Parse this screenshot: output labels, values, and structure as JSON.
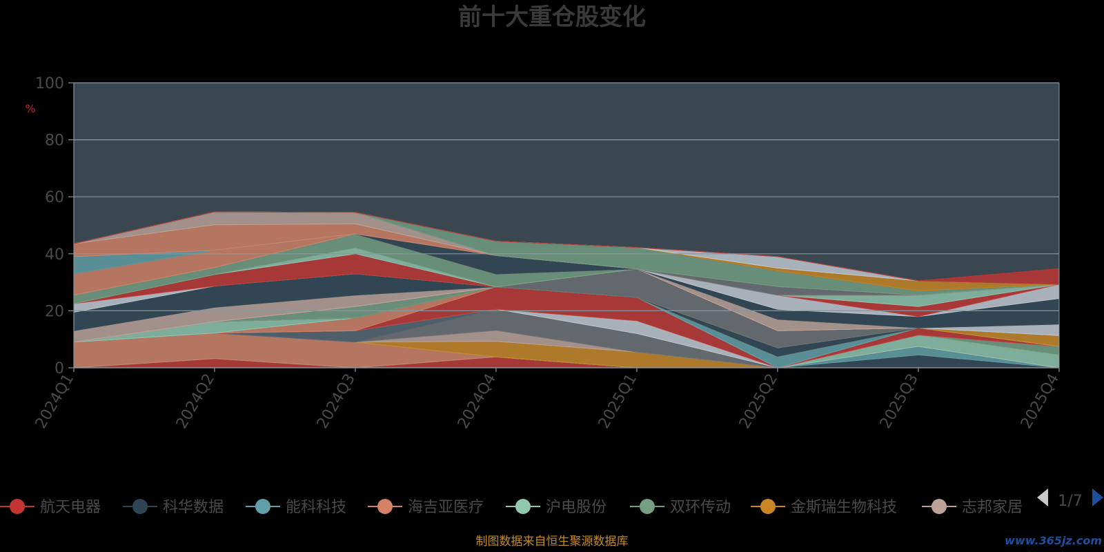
{
  "chart_data": {
    "type": "area",
    "title": "前十大重仓股变化",
    "ylabel": "%",
    "ylim": [
      0,
      100
    ],
    "yticks": [
      0,
      20,
      40,
      60,
      80,
      100
    ],
    "grid": true,
    "categories": [
      "2024Q1",
      "2024Q2",
      "2024Q3",
      "2024Q4",
      "2025Q1",
      "2025Q2",
      "2025Q3",
      "2025Q4"
    ],
    "series": [
      {
        "name": "航天电器",
        "color": "#c23531",
        "values": [
          0,
          3.2,
          0,
          3.8,
          0,
          0,
          0,
          0
        ]
      },
      {
        "name": "科华数据",
        "color": "#2f4554",
        "values": [
          0,
          0,
          0,
          0,
          0,
          0,
          4.5,
          0
        ]
      },
      {
        "name": "能科科技",
        "color": "#61a0a8",
        "values": [
          0,
          0,
          0,
          0,
          0,
          0,
          3.0,
          0
        ]
      },
      {
        "name": "海吉亚医疗",
        "color": "#d48265",
        "values": [
          9.0,
          9.0,
          9.0,
          0,
          0,
          0,
          0,
          0
        ]
      },
      {
        "name": "沪电股份",
        "color": "#91c7ae",
        "values": [
          0,
          0,
          0,
          0,
          0,
          0,
          4.0,
          4.5
        ]
      },
      {
        "name": "双环传动",
        "color": "#749f83",
        "values": [
          0,
          0,
          0,
          0,
          0,
          0,
          0,
          3.0
        ]
      },
      {
        "name": "金斯瑞生物科技",
        "color": "#ca8622",
        "values": [
          0,
          0,
          0,
          5.5,
          5.5,
          0,
          0,
          0
        ]
      },
      {
        "name": "志邦家居",
        "color": "#bda29a",
        "values": [
          0,
          0,
          0,
          3.8,
          0,
          0,
          0,
          0
        ]
      },
      {
        "name": "",
        "color": "#6e7074",
        "values": [
          0,
          0,
          0,
          7.5,
          6.5,
          0,
          0,
          0
        ]
      },
      {
        "name": "",
        "color": "#546570",
        "values": [
          0,
          0,
          4.0,
          0,
          0,
          0,
          0,
          0
        ]
      },
      {
        "name": "",
        "color": "#c4ccd3",
        "values": [
          0,
          0,
          0,
          0,
          4.5,
          0,
          0,
          0
        ]
      },
      {
        "name": "",
        "color": "#c23531",
        "values": [
          0,
          0,
          0,
          7.8,
          8.2,
          0,
          2.5,
          0
        ]
      },
      {
        "name": "",
        "color": "#d48265",
        "values": [
          0,
          0,
          4.5,
          0,
          0,
          0,
          0,
          0
        ]
      },
      {
        "name": "",
        "color": "#61a0a8",
        "values": [
          0,
          0,
          0,
          0,
          0,
          4.0,
          0,
          0
        ]
      },
      {
        "name": "",
        "color": "#91c7ae",
        "values": [
          0,
          4.0,
          0,
          0,
          0,
          0,
          0,
          0
        ]
      },
      {
        "name": "",
        "color": "#ca8622",
        "values": [
          0,
          0,
          0,
          0,
          0,
          0,
          0,
          3.8
        ]
      },
      {
        "name": "",
        "color": "#2f4554",
        "values": [
          0,
          0,
          0,
          0,
          0,
          3.0,
          0,
          0
        ]
      },
      {
        "name": "",
        "color": "#749f83",
        "values": [
          0,
          0,
          4.0,
          0,
          0,
          0,
          0,
          0
        ]
      },
      {
        "name": "",
        "color": "#6e7074",
        "values": [
          0,
          0,
          0,
          0,
          10.0,
          6.0,
          0,
          0
        ]
      },
      {
        "name": "",
        "color": "#c4ccd3",
        "values": [
          0,
          0,
          0,
          0,
          0,
          0,
          0,
          4.0
        ]
      },
      {
        "name": "",
        "color": "#d48265",
        "values": [
          0,
          0,
          0,
          0,
          0,
          0,
          0,
          0
        ]
      },
      {
        "name": "",
        "color": "#bda29a",
        "values": [
          4.0,
          5.0,
          4.0,
          0,
          0,
          4.0,
          0,
          0
        ]
      },
      {
        "name": "",
        "color": "#2f4554",
        "values": [
          6.5,
          7.5,
          7.5,
          0,
          0,
          3.5,
          4.0,
          9.0
        ]
      },
      {
        "name": "",
        "color": "#c4ccd3",
        "values": [
          3.0,
          0,
          0,
          0,
          0,
          5.0,
          0,
          5.0
        ]
      },
      {
        "name": "",
        "color": "#c23531",
        "values": [
          0,
          4.0,
          7.0,
          0,
          0,
          0,
          3.5,
          0
        ]
      },
      {
        "name": "",
        "color": "#91c7ae",
        "values": [
          0,
          0,
          2.0,
          0,
          0,
          0,
          4.0,
          0
        ]
      },
      {
        "name": "",
        "color": "#749f83",
        "values": [
          3.0,
          2.5,
          5.0,
          4.5,
          0,
          0,
          0,
          0
        ]
      },
      {
        "name": "",
        "color": "#d48265",
        "values": [
          7.5,
          6.0,
          0,
          0,
          0,
          0,
          0,
          0
        ]
      },
      {
        "name": "",
        "color": "#2f4554",
        "values": [
          0,
          0,
          0,
          6.5,
          0,
          0,
          0,
          0
        ]
      },
      {
        "name": "",
        "color": "#61a0a8",
        "values": [
          6.0,
          0,
          0,
          0,
          0,
          0,
          0,
          0
        ]
      },
      {
        "name": "",
        "color": "#d48265",
        "values": [
          4.5,
          9.0,
          3.5,
          0,
          0,
          0,
          0,
          0
        ]
      },
      {
        "name": "",
        "color": "#bda29a",
        "values": [
          0,
          4.5,
          4.0,
          0,
          0,
          0,
          0,
          0
        ]
      },
      {
        "name": "",
        "color": "#6e7074",
        "values": [
          0,
          0,
          0,
          0,
          0,
          3.0,
          0,
          0
        ]
      },
      {
        "name": "",
        "color": "#749f83",
        "values": [
          0,
          0,
          0,
          5.0,
          7.5,
          5.5,
          1.5,
          0
        ]
      },
      {
        "name": "",
        "color": "#2f4554",
        "values": [
          0,
          0,
          0,
          0,
          0,
          0,
          0,
          0
        ]
      },
      {
        "name": "",
        "color": "#ca8622",
        "values": [
          0,
          0,
          0,
          0,
          0,
          1.0,
          3.5,
          0
        ]
      },
      {
        "name": "",
        "color": "#c4ccd3",
        "values": [
          0,
          0,
          0,
          0,
          0,
          4.0,
          0,
          0
        ]
      },
      {
        "name": "",
        "color": "#6e7074",
        "values": [
          0,
          0,
          0,
          0,
          0,
          0,
          0,
          0
        ]
      },
      {
        "name": "",
        "color": "#c23531",
        "values": [
          0,
          0,
          0,
          0,
          0,
          0,
          0,
          5.5
        ]
      }
    ]
  },
  "legend": {
    "items": [
      {
        "name": "航天电器",
        "color": "#c23531"
      },
      {
        "name": "科华数据",
        "color": "#2f4554"
      },
      {
        "name": "能科科技",
        "color": "#61a0a8"
      },
      {
        "name": "海吉亚医疗",
        "color": "#d48265"
      },
      {
        "name": "沪电股份",
        "color": "#91c7ae"
      },
      {
        "name": "双环传动",
        "color": "#749f83"
      },
      {
        "name": "金斯瑞生物科技",
        "color": "#ca8622"
      },
      {
        "name": "志邦家居",
        "color": "#bda29a"
      }
    ],
    "page": "1/7"
  },
  "source_text": "制图数据来自恒生聚源数据库",
  "watermark": "www.365jz.com",
  "colors": {
    "background": "#000000",
    "plot_bg": "#3a4750",
    "grid": "#8a969e"
  }
}
